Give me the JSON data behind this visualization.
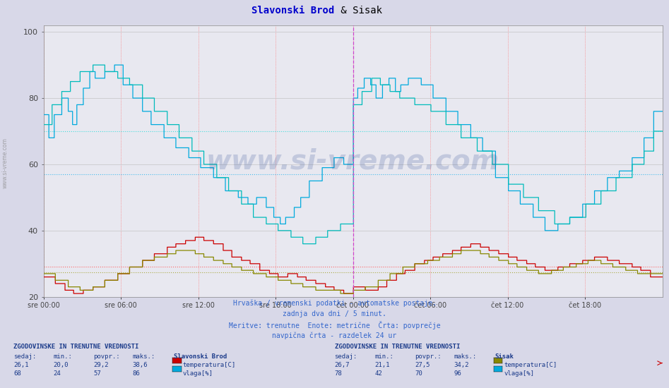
{
  "title": "Slavonski Brod & Sisak",
  "title_bold": "Slavonski Brod",
  "title_normal": " & Sisak",
  "title_color_bold": "#0000cc",
  "title_color_normal": "#000000",
  "bg_color": "#d8d8e8",
  "plot_bg_color": "#e8e8f0",
  "ylim": [
    20,
    102
  ],
  "yticks": [
    20,
    40,
    60,
    80,
    100
  ],
  "xtick_labels": [
    "sre 00:00",
    "sre 06:00",
    "sre 12:00",
    "sre 18:00",
    "čet 00:00",
    "čet 06:00",
    "čet 12:00",
    "čet 18:00"
  ],
  "num_points": 576,
  "colors": {
    "slbrod_temp": "#cc0000",
    "slbrod_vlaga": "#00aadd",
    "sisak_temp": "#888800",
    "sisak_vlaga": "#00bbbb"
  },
  "avg_lines": {
    "slbrod_temp": 29.2,
    "slbrod_vlaga": 57.0,
    "sisak_temp": 27.5,
    "sisak_vlaga": 70.0
  },
  "avg_line_colors": {
    "slbrod_temp": "#ff6666",
    "slbrod_vlaga": "#44bbee",
    "sisak_temp": "#aaaa44",
    "sisak_vlaga": "#44dddd"
  },
  "subtitle_lines": [
    "Hrvaška / vremenski podatki - avtomatske postaje.",
    "zadnja dva dni / 5 minut.",
    "Meritve: trenutne  Enote: metrične  Črta: povprečje",
    "navpična črta - razdelek 24 ur"
  ],
  "legend_left": {
    "header": "ZGODOVINSKE IN TRENUTNE VREDNOSTI",
    "col_headers": [
      "sedaj:",
      "min.:",
      "povpr.:",
      "maks.:"
    ],
    "station": "Slavonski Brod",
    "rows": [
      {
        "values": [
          "26,1",
          "20,0",
          "29,2",
          "38,6"
        ],
        "label": "temperatura[C]",
        "color": "#cc0000"
      },
      {
        "values": [
          "68",
          "24",
          "57",
          "86"
        ],
        "label": "vlaga[%]",
        "color": "#00aadd"
      }
    ]
  },
  "legend_right": {
    "header": "ZGODOVINSKE IN TRENUTNE VREDNOSTI",
    "col_headers": [
      "sedaj:",
      "min.:",
      "povpr.:",
      "maks.:"
    ],
    "station": "Sisak",
    "rows": [
      {
        "values": [
          "26,7",
          "21,1",
          "27,5",
          "34,2"
        ],
        "label": "temperatura[C]",
        "color": "#888800"
      },
      {
        "values": [
          "78",
          "42",
          "70",
          "96"
        ],
        "label": "vlaga[%]",
        "color": "#00aadd"
      }
    ]
  },
  "watermark": "www.si-vreme.com"
}
